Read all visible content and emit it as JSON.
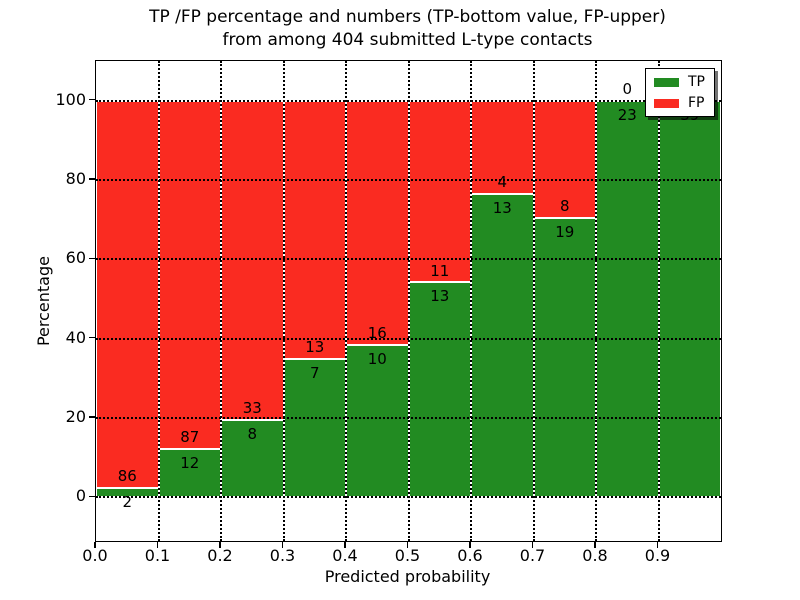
{
  "figure": {
    "title_line1": "TP /FP percentage and numbers (TP-bottom value, FP-upper)",
    "title_line2": "from among 404 submitted L-type contacts"
  },
  "chart_data": {
    "type": "bar",
    "stacked": true,
    "title": "TP /FP percentage and numbers (TP-bottom value, FP-upper) from among 404 submitted L-type contacts",
    "total_contacts": 404,
    "xlabel": "Predicted probability",
    "ylabel": "Percentage",
    "xlim": [
      0.0,
      1.0
    ],
    "ylim": [
      -11,
      110
    ],
    "xticks": [
      {
        "value": 0.0,
        "label": "0.0"
      },
      {
        "value": 0.1,
        "label": "0.1"
      },
      {
        "value": 0.2,
        "label": "0.2"
      },
      {
        "value": 0.3,
        "label": "0.3"
      },
      {
        "value": 0.4,
        "label": "0.4"
      },
      {
        "value": 0.5,
        "label": "0.5"
      },
      {
        "value": 0.6,
        "label": "0.6"
      },
      {
        "value": 0.7,
        "label": "0.7"
      },
      {
        "value": 0.8,
        "label": "0.8"
      },
      {
        "value": 0.9,
        "label": "0.9"
      }
    ],
    "yticks": [
      0,
      20,
      40,
      60,
      80,
      100
    ],
    "grid": "dotted, both axes, drawn over bars",
    "legend": {
      "position": "upper right",
      "entries": [
        {
          "label": "TP",
          "color": "#228B22"
        },
        {
          "label": "FP",
          "color": "#FA2B21"
        }
      ]
    },
    "colors": {
      "tp_green": "#228B22",
      "fp_red": "#FA2B21",
      "bar_edge": "#FFFFFF",
      "background": "#FFFFFF",
      "axis": "#000000"
    },
    "bar_width": 0.1,
    "bins": [
      {
        "x_start": 0.0,
        "x_end": 0.1,
        "tp": 2,
        "fp": 86
      },
      {
        "x_start": 0.1,
        "x_end": 0.2,
        "tp": 12,
        "fp": 87
      },
      {
        "x_start": 0.2,
        "x_end": 0.3,
        "tp": 8,
        "fp": 33
      },
      {
        "x_start": 0.3,
        "x_end": 0.4,
        "tp": 7,
        "fp": 13
      },
      {
        "x_start": 0.4,
        "x_end": 0.5,
        "tp": 10,
        "fp": 16
      },
      {
        "x_start": 0.5,
        "x_end": 0.6,
        "tp": 13,
        "fp": 11
      },
      {
        "x_start": 0.6,
        "x_end": 0.7,
        "tp": 13,
        "fp": 4
      },
      {
        "x_start": 0.7,
        "x_end": 0.8,
        "tp": 19,
        "fp": 8
      },
      {
        "x_start": 0.8,
        "x_end": 0.9,
        "tp": 23,
        "fp": 0
      },
      {
        "x_start": 0.9,
        "x_end": 1.0,
        "tp": 39,
        "fp": 0
      }
    ]
  }
}
